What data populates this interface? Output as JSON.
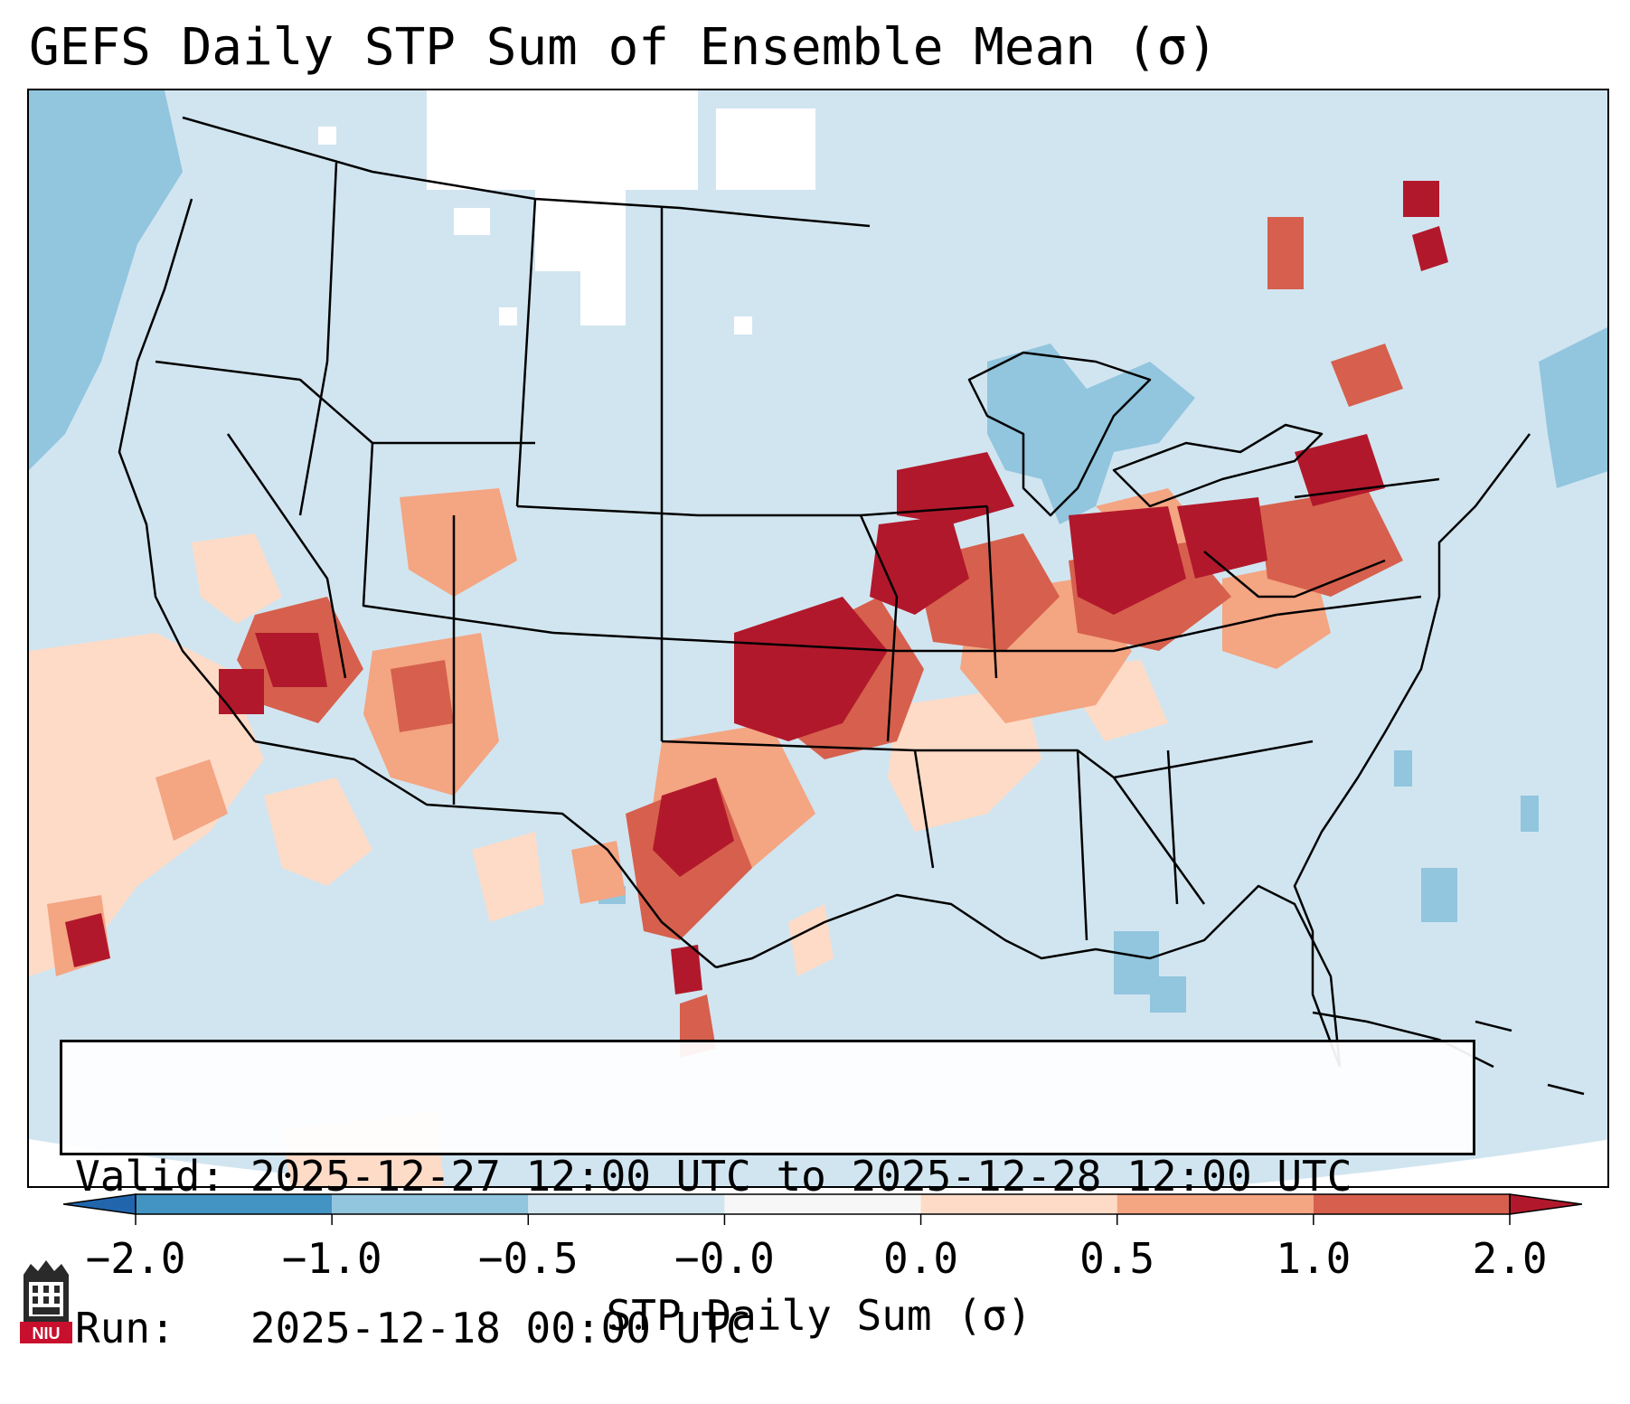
{
  "title": "GEFS Daily STP Sum of Ensemble Mean (σ)",
  "info": {
    "valid": "Valid: 2025-12-27 12:00 UTC to 2025-12-28 12:00 UTC",
    "run": "Run:   2025-12-18 00:00 UTC"
  },
  "colorbar": {
    "label": "STP Daily Sum (σ)",
    "ticks": [
      "−2.0",
      "−1.0",
      "−0.5",
      "−0.0",
      "0.0",
      "0.5",
      "1.0",
      "2.0"
    ],
    "bins": [
      {
        "range": "< -2.0",
        "color": "#2166ac"
      },
      {
        "range": "-2.0 to -1.0",
        "color": "#4393c3"
      },
      {
        "range": "-1.0 to -0.5",
        "color": "#92c5de"
      },
      {
        "range": "-0.5 to -0.0",
        "color": "#d1e5f0"
      },
      {
        "range": "-0.0 to 0.0",
        "color": "#f7f7f7"
      },
      {
        "range": "0.0 to 0.5",
        "color": "#fddbc7"
      },
      {
        "range": "0.5 to 1.0",
        "color": "#f4a582"
      },
      {
        "range": "1.0 to 2.0",
        "color": "#d6604d"
      },
      {
        "range": "> 2.0",
        "color": "#b2182b"
      }
    ]
  },
  "logo_text": "NIU",
  "colors": {
    "background_field": "#d1e5f0",
    "high_anomaly": "#b2182b",
    "moderate_anomaly": "#d6604d",
    "low_anomaly": "#f4a582",
    "slight_anomaly": "#fddbc7",
    "negative_anomaly": "#92c5de"
  }
}
